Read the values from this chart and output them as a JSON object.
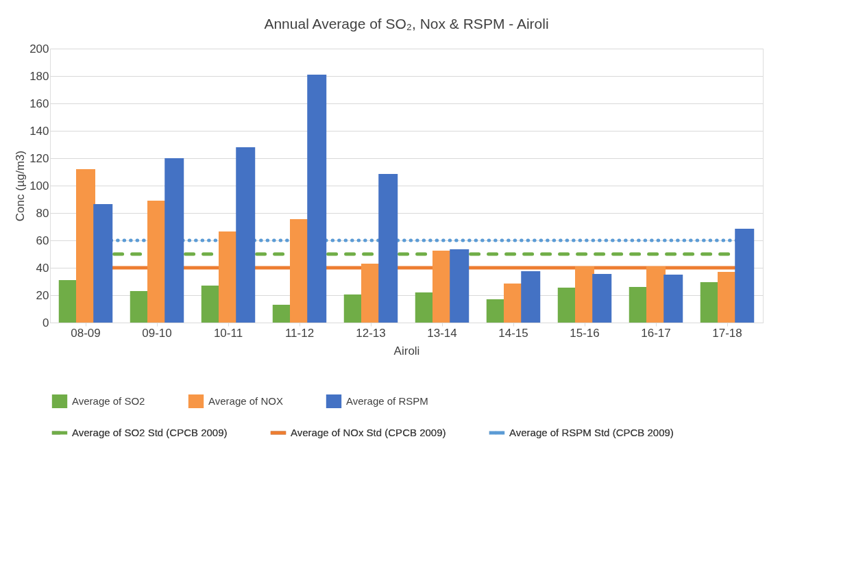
{
  "chart_data": {
    "type": "bar",
    "title": "Annual Average of SO₂, Nox & RSPM - Airoli",
    "xlabel": "Airoli",
    "ylabel": "Conc (µg/m3)",
    "categories": [
      "08-09",
      "09-10",
      "10-11",
      "11-12",
      "12-13",
      "13-14",
      "14-15",
      "15-16",
      "16-17",
      "17-18"
    ],
    "series": [
      {
        "name": "Average of SO2",
        "color": "#70ad47",
        "values": [
          31,
          23,
          27,
          13,
          20.5,
          22,
          17,
          25.5,
          26,
          29.5
        ]
      },
      {
        "name": "Average of NOX",
        "color": "#f79646",
        "values": [
          112,
          89,
          66.5,
          75.5,
          43,
          52.5,
          28.5,
          41,
          41,
          37
        ]
      },
      {
        "name": "Average of RSPM",
        "color": "#4472c4",
        "values": [
          86.5,
          120,
          128,
          181,
          108.5,
          53.5,
          37.5,
          35.5,
          35,
          68.5
        ]
      }
    ],
    "ref_lines": [
      {
        "axis": "y",
        "value": 50,
        "label": "Average of SO2 Std (CPCB 2009)",
        "color": "#70ad47",
        "line_style": "dashed"
      },
      {
        "axis": "y",
        "value": 40,
        "label": "Average of NOx Std (CPCB 2009)",
        "color": "#ed7d31",
        "line_style": "solid"
      },
      {
        "axis": "y",
        "value": 60,
        "label": "Average of RSPM Std (CPCB 2009)",
        "color": "#5b9bd5",
        "line_style": "dotted"
      }
    ],
    "ylim": [
      0,
      200
    ],
    "yticks": [
      0,
      20,
      40,
      60,
      80,
      100,
      120,
      140,
      160,
      180,
      200
    ],
    "grid": "y",
    "legend": "bottom"
  }
}
